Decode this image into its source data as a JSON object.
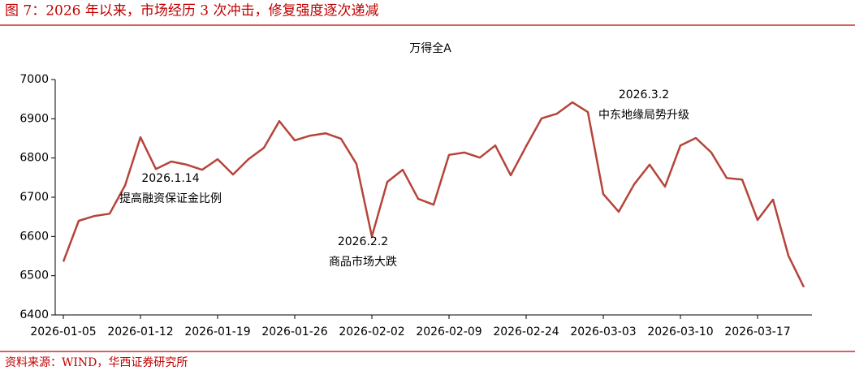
{
  "header": {
    "title": "图 7：2026 年以来，市场经历 3 次冲击，修复强度逐次递减"
  },
  "chart_data": {
    "type": "line",
    "title": "万得全A",
    "categories": [
      "2026-01-05",
      null,
      null,
      null,
      null,
      "2026-01-12",
      null,
      null,
      null,
      null,
      "2026-01-19",
      null,
      null,
      null,
      null,
      "2026-01-26",
      null,
      null,
      null,
      null,
      "2026-02-02",
      null,
      null,
      null,
      null,
      "2026-02-09",
      null,
      null,
      null,
      null,
      "2026-02-24",
      null,
      null,
      null,
      null,
      "2026-03-03",
      null,
      null,
      null,
      null,
      "2026-03-10",
      null,
      null,
      null,
      null,
      "2026-03-17",
      null,
      null,
      null
    ],
    "series": [
      {
        "name": "万得全A",
        "color": "#b5443a",
        "values": [
          6536,
          6640,
          6652,
          6658,
          6730,
          6853,
          6772,
          6791,
          6783,
          6770,
          6797,
          6758,
          6797,
          6826,
          6894,
          6845,
          6857,
          6863,
          6849,
          6785,
          6600,
          6739,
          6770,
          6696,
          6681,
          6808,
          6814,
          6801,
          6832,
          6756,
          6830,
          6901,
          6913,
          6942,
          6917,
          6708,
          6663,
          6733,
          6783,
          6727,
          6832,
          6851,
          6814,
          6749,
          6745,
          6642,
          6694,
          6551,
          6471
        ]
      }
    ],
    "ylim": [
      6400,
      7000
    ],
    "yticks": [
      6400,
      6500,
      6600,
      6700,
      6800,
      6900,
      7000
    ],
    "grid": false,
    "annotations": [
      {
        "date": "2026.1.14",
        "text": "提高融资保证金比例"
      },
      {
        "date": "2026.2.2",
        "text": "商品市场大跌"
      },
      {
        "date": "2026.3.2",
        "text": "中东地缘局势升级"
      }
    ]
  },
  "footer": {
    "source": "资料来源：WIND，华西证券研究所"
  }
}
